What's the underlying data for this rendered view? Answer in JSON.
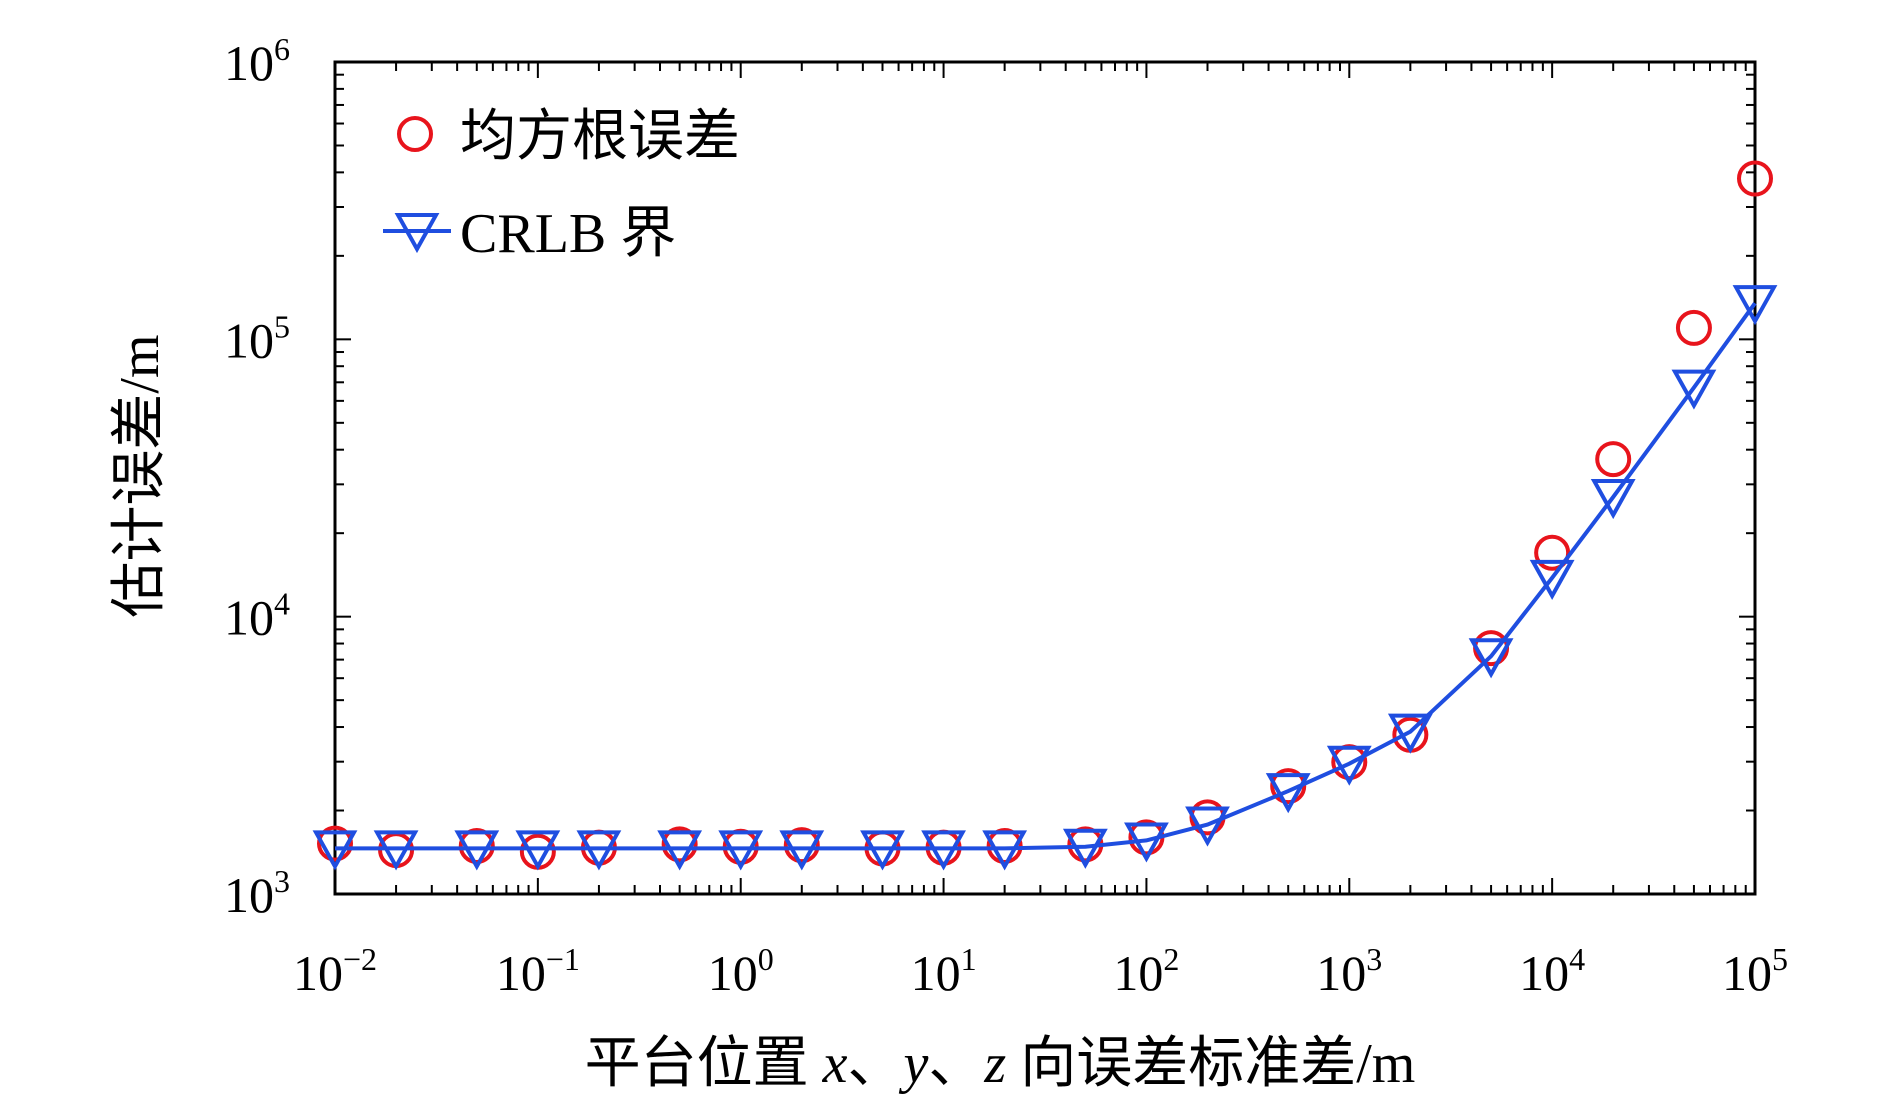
{
  "chart_data": {
    "type": "scatter",
    "x_scale": "log",
    "y_scale": "log",
    "xlim": [
      0.01,
      100000
    ],
    "ylim": [
      1000,
      1000000
    ],
    "grid": false,
    "legend_position": "top-left",
    "xlabel": {
      "prefix": "平台位置 ",
      "var_x": "x",
      "sep1": "、",
      "var_y": "y",
      "sep2": "、",
      "var_z": "z",
      "suffix": " 向误差标准差/m"
    },
    "ylabel": "估计误差/m",
    "x_ticks": [
      {
        "base": "10",
        "exp": "−2",
        "value": 0.01
      },
      {
        "base": "10",
        "exp": "−1",
        "value": 0.1
      },
      {
        "base": "10",
        "exp": "0",
        "value": 1
      },
      {
        "base": "10",
        "exp": "1",
        "value": 10
      },
      {
        "base": "10",
        "exp": "2",
        "value": 100
      },
      {
        "base": "10",
        "exp": "3",
        "value": 1000
      },
      {
        "base": "10",
        "exp": "4",
        "value": 10000
      },
      {
        "base": "10",
        "exp": "5",
        "value": 100000
      }
    ],
    "y_ticks": [
      {
        "base": "10",
        "exp": "3",
        "value": 1000
      },
      {
        "base": "10",
        "exp": "4",
        "value": 10000
      },
      {
        "base": "10",
        "exp": "5",
        "value": 100000
      },
      {
        "base": "10",
        "exp": "6",
        "value": 1000000
      }
    ],
    "x": [
      0.01,
      0.02,
      0.05,
      0.1,
      0.2,
      0.5,
      1,
      2,
      5,
      10,
      20,
      50,
      100,
      200,
      500,
      1000,
      2000,
      5000,
      10000,
      20000,
      50000,
      100000
    ],
    "series": [
      {
        "name": "均方根误差",
        "marker": "circle",
        "line": false,
        "color": "#e8141c",
        "values": [
          1520,
          1440,
          1490,
          1420,
          1470,
          1510,
          1480,
          1500,
          1460,
          1470,
          1490,
          1510,
          1600,
          1890,
          2450,
          2990,
          3750,
          7700,
          17000,
          37000,
          110000,
          380000
        ]
      },
      {
        "name": "CRLB 界",
        "marker": "triangle-down",
        "line": true,
        "color": "#1f4ee0",
        "values": [
          1460,
          1460,
          1460,
          1460,
          1460,
          1460,
          1460,
          1460,
          1460,
          1460,
          1460,
          1480,
          1560,
          1780,
          2350,
          2950,
          3850,
          7200,
          13800,
          27000,
          67000,
          135000
        ]
      }
    ]
  }
}
